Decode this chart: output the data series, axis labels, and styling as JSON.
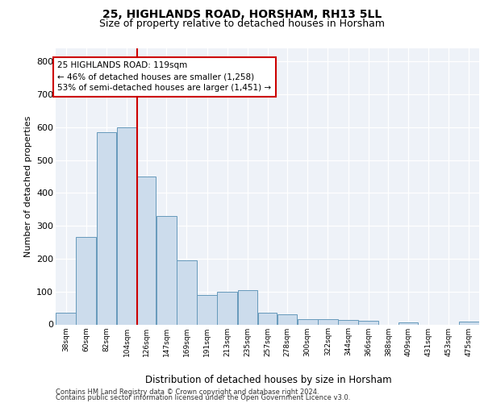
{
  "title_line1": "25, HIGHLANDS ROAD, HORSHAM, RH13 5LL",
  "title_line2": "Size of property relative to detached houses in Horsham",
  "xlabel": "Distribution of detached houses by size in Horsham",
  "ylabel": "Number of detached properties",
  "footer_line1": "Contains HM Land Registry data © Crown copyright and database right 2024.",
  "footer_line2": "Contains public sector information licensed under the Open Government Licence v3.0.",
  "annotation_line1": "25 HIGHLANDS ROAD: 119sqm",
  "annotation_line2": "← 46% of detached houses are smaller (1,258)",
  "annotation_line3": "53% of semi-detached houses are larger (1,451) →",
  "bar_color": "#ccdcec",
  "bar_edgecolor": "#6699bb",
  "redline_color": "#cc0000",
  "plot_bg_color": "#eef2f8",
  "categories": [
    "38sqm",
    "60sqm",
    "82sqm",
    "104sqm",
    "126sqm",
    "147sqm",
    "169sqm",
    "191sqm",
    "213sqm",
    "235sqm",
    "257sqm",
    "278sqm",
    "300sqm",
    "322sqm",
    "344sqm",
    "366sqm",
    "388sqm",
    "409sqm",
    "431sqm",
    "453sqm",
    "475sqm"
  ],
  "bin_left": [
    38,
    60,
    82,
    104,
    126,
    147,
    169,
    191,
    213,
    235,
    257,
    278,
    300,
    322,
    344,
    366,
    388,
    409,
    431,
    453,
    475
  ],
  "bin_width": [
    22,
    22,
    22,
    22,
    21,
    22,
    22,
    22,
    22,
    22,
    21,
    22,
    22,
    22,
    22,
    22,
    21,
    22,
    22,
    22,
    22
  ],
  "values": [
    35,
    265,
    585,
    600,
    450,
    330,
    195,
    90,
    100,
    105,
    35,
    30,
    17,
    15,
    13,
    10,
    0,
    5,
    0,
    0,
    8
  ],
  "red_x": 126,
  "xlim": [
    38,
    497
  ],
  "ylim": [
    0,
    840
  ],
  "yticks": [
    0,
    100,
    200,
    300,
    400,
    500,
    600,
    700,
    800
  ]
}
